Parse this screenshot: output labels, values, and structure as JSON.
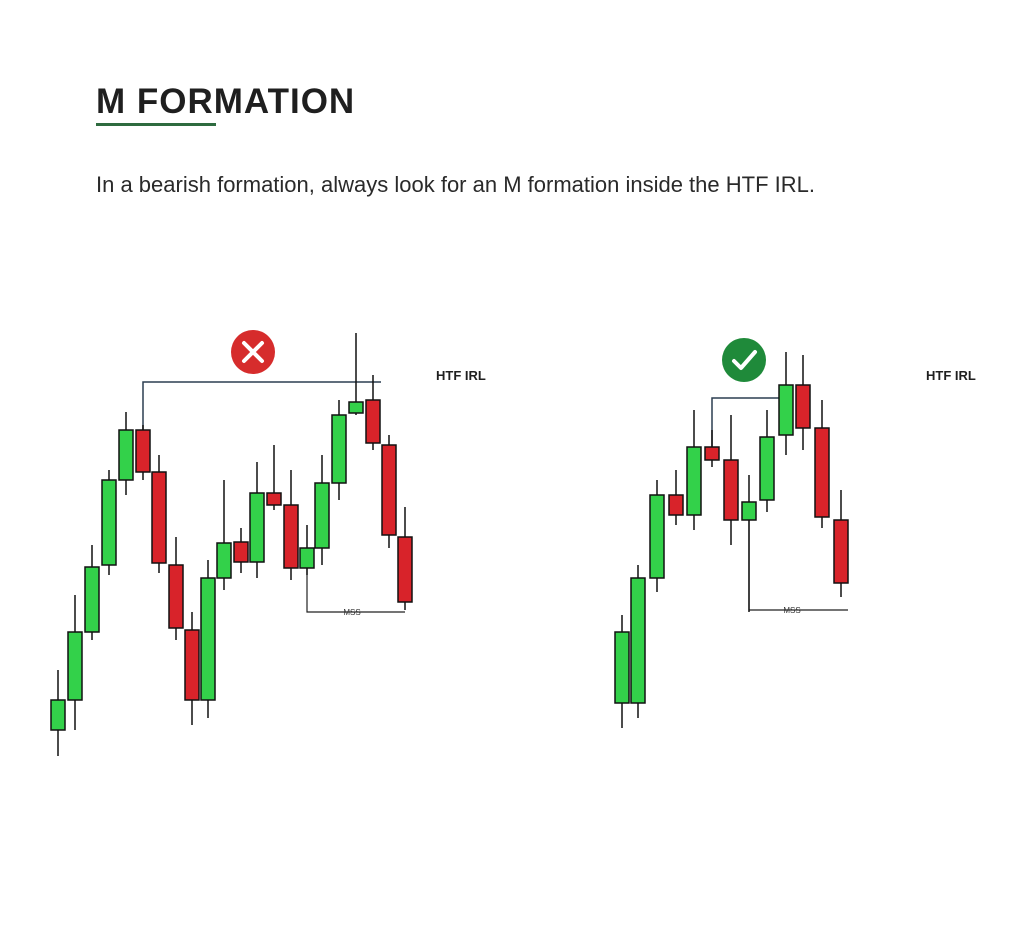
{
  "title": "M FORMATION",
  "description": "In a bearish formation, always look for an M formation inside the HTF IRL.",
  "panels": [
    {
      "level_label": "HTF IRL",
      "mss_label": "MSS"
    },
    {
      "level_label": "HTF IRL",
      "mss_label": "MSS"
    }
  ]
}
